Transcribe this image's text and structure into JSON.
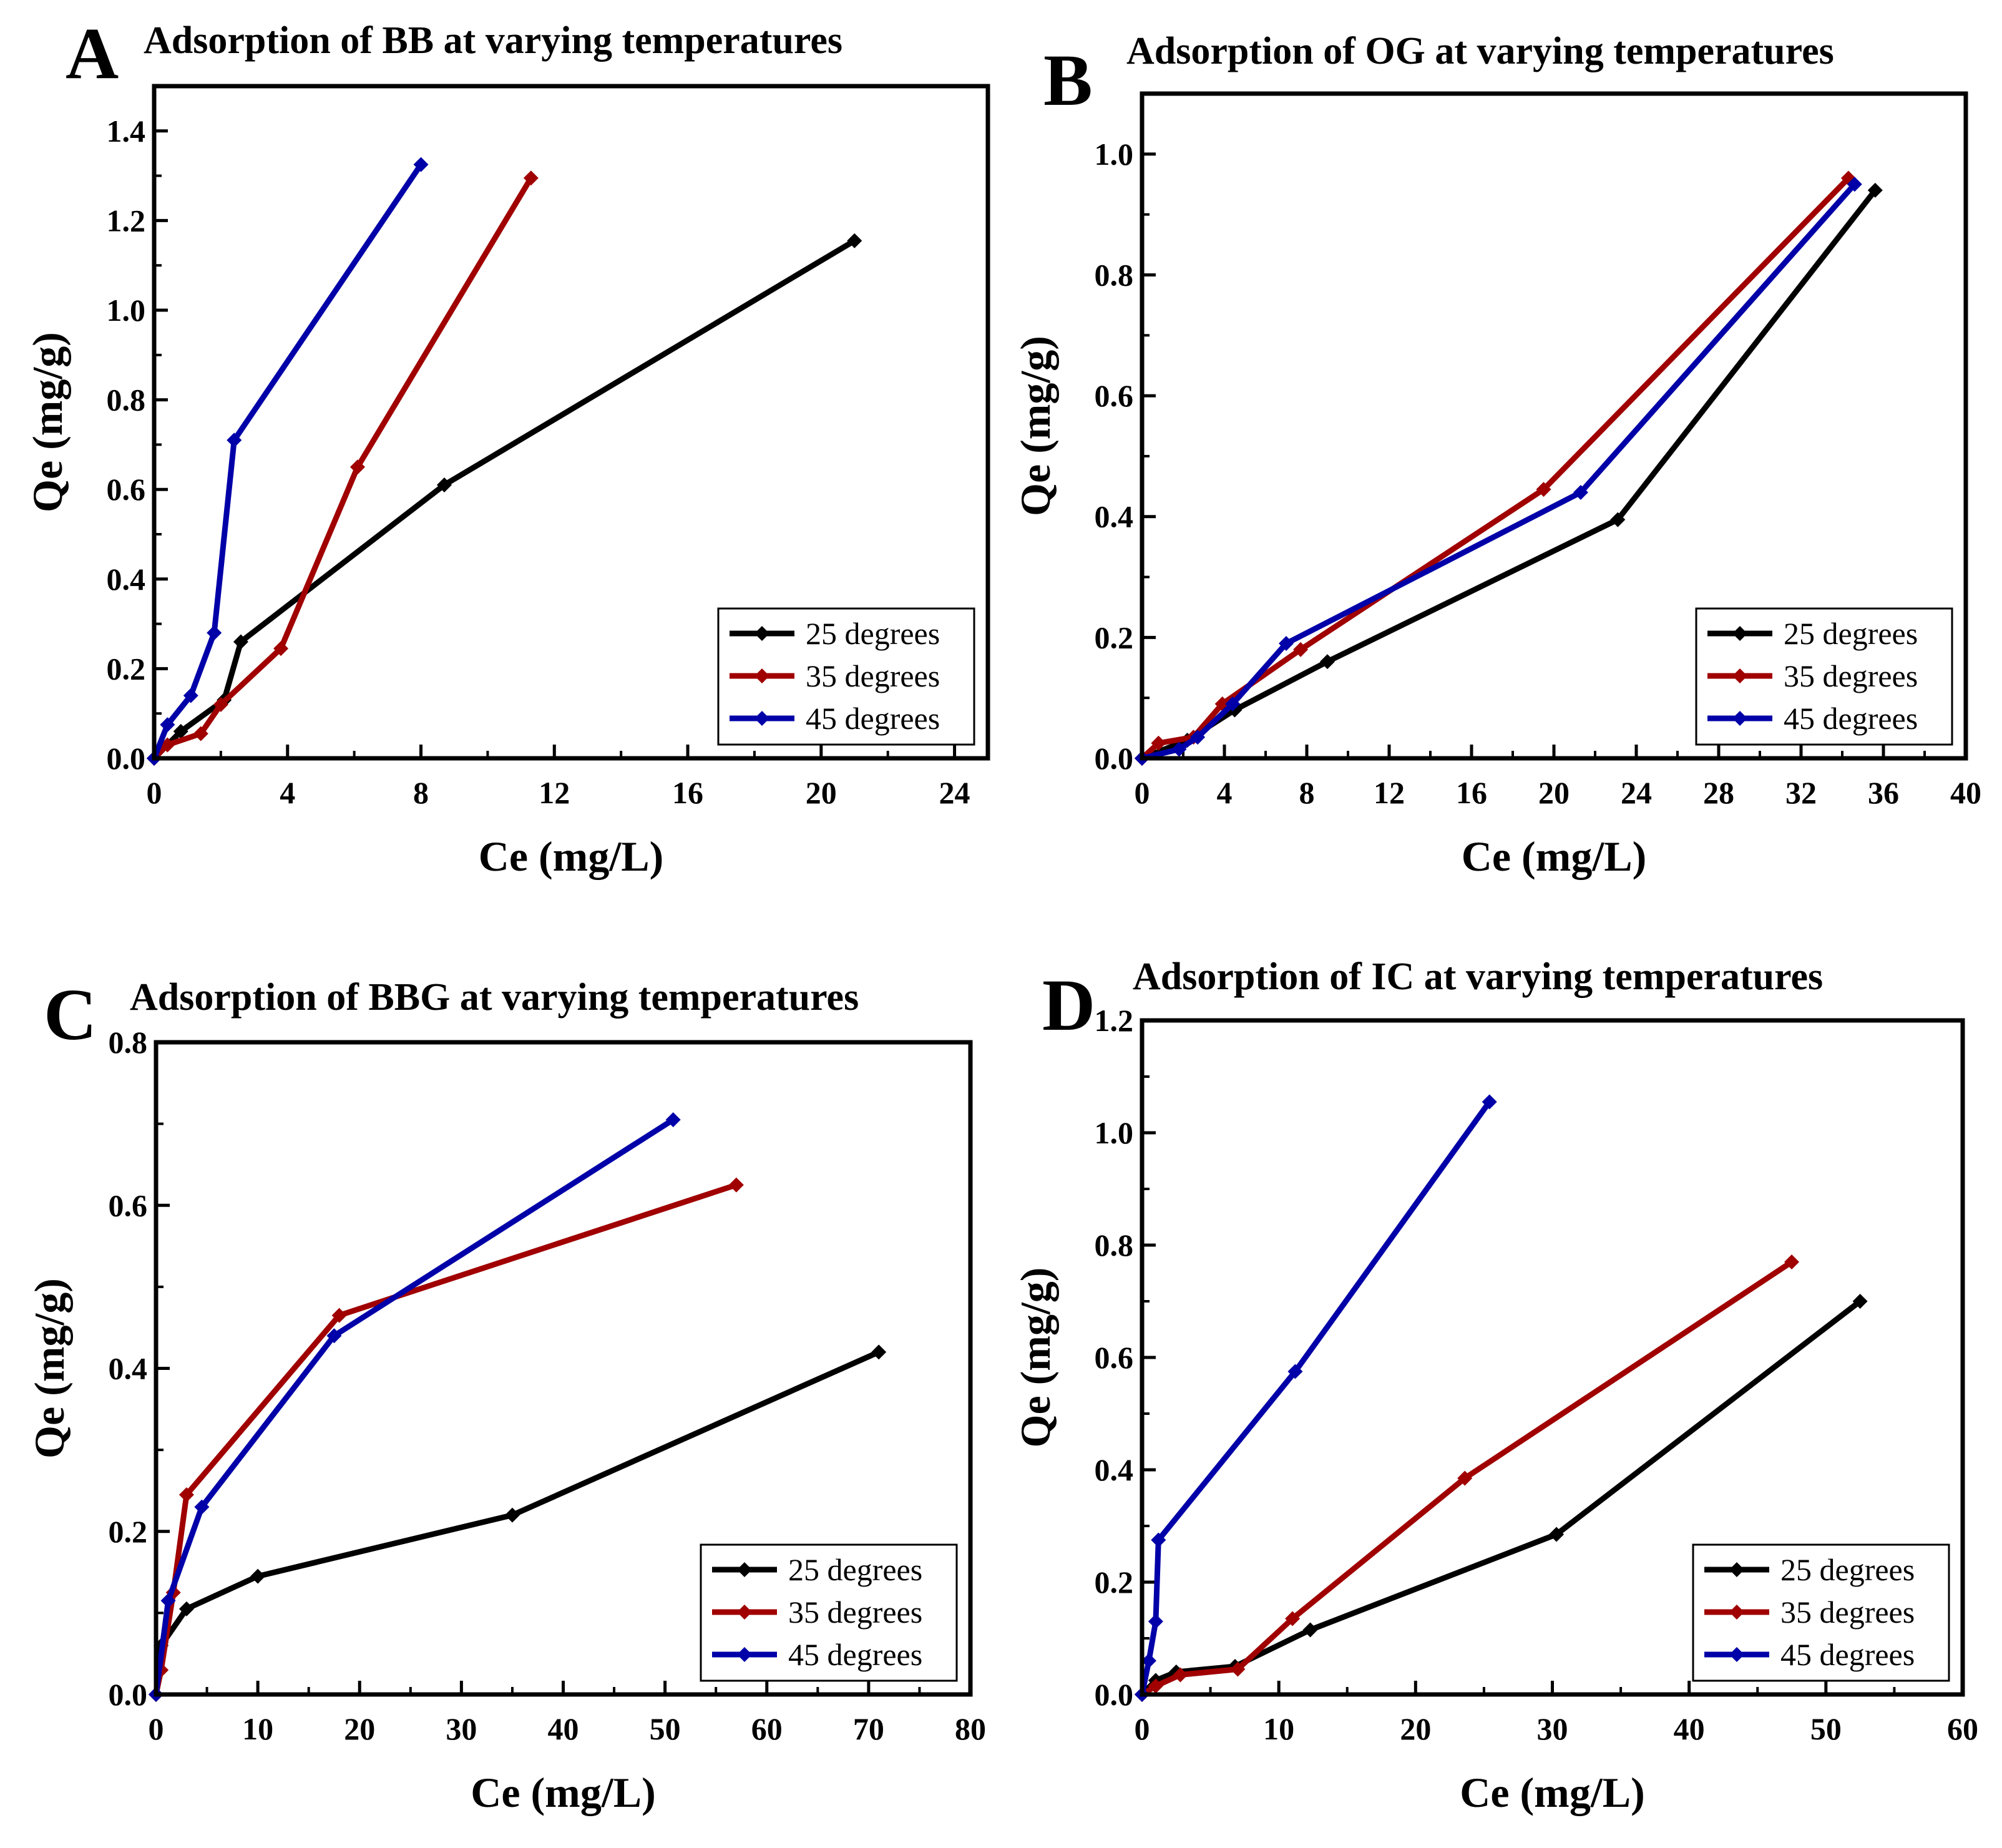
{
  "chart_data": [
    {
      "panel_letter": "A",
      "type": "line",
      "title": "Adsorption of BB at varying temperatures",
      "xlabel": "Ce (mg/L)",
      "ylabel": "Qe (mg/g)",
      "xlim": [
        0,
        25
      ],
      "ylim": [
        0,
        1.5
      ],
      "xticks": [
        0,
        4,
        8,
        12,
        16,
        20,
        24
      ],
      "yticks": [
        0.0,
        0.2,
        0.4,
        0.6,
        0.8,
        1.0,
        1.2,
        1.4
      ],
      "ytick_decimals": 1,
      "legend_position": "bottom-right",
      "series": [
        {
          "name": "25 degrees",
          "color": "#000000",
          "x": [
            0,
            0.8,
            2.1,
            2.6,
            8.7,
            21.0
          ],
          "y": [
            0,
            0.06,
            0.13,
            0.26,
            0.61,
            1.155
          ]
        },
        {
          "name": "35 degrees",
          "color": "#a00000",
          "x": [
            0,
            0.4,
            1.4,
            2.0,
            3.8,
            6.1,
            11.3
          ],
          "y": [
            0,
            0.03,
            0.055,
            0.12,
            0.245,
            0.65,
            1.295
          ]
        },
        {
          "name": "45 degrees",
          "color": "#0000a8",
          "x": [
            0,
            0.4,
            1.1,
            1.8,
            2.4,
            8.0
          ],
          "y": [
            0,
            0.075,
            0.14,
            0.28,
            0.71,
            1.325
          ]
        }
      ]
    },
    {
      "panel_letter": "B",
      "type": "line",
      "title": "Adsorption of OG at varying temperatures",
      "xlabel": "Ce (mg/L)",
      "ylabel": "Qe (mg/g)",
      "xlim": [
        0,
        40
      ],
      "ylim": [
        0,
        1.1
      ],
      "xticks": [
        0,
        4,
        8,
        12,
        16,
        20,
        24,
        28,
        32,
        36,
        40
      ],
      "yticks": [
        0.0,
        0.2,
        0.4,
        0.6,
        0.8,
        1.0
      ],
      "ytick_decimals": 1,
      "legend_position": "bottom-right",
      "series": [
        {
          "name": "25 degrees",
          "color": "#000000",
          "x": [
            0,
            2.2,
            4.5,
            9.0,
            23.1,
            35.6
          ],
          "y": [
            0,
            0.03,
            0.08,
            0.16,
            0.395,
            0.94
          ]
        },
        {
          "name": "35 degrees",
          "color": "#a00000",
          "x": [
            0,
            0.8,
            2.5,
            3.9,
            7.7,
            19.5,
            34.3
          ],
          "y": [
            0,
            0.025,
            0.035,
            0.09,
            0.18,
            0.445,
            0.96
          ]
        },
        {
          "name": "45 degrees",
          "color": "#0000a8",
          "x": [
            0,
            1.8,
            2.7,
            4.4,
            7.0,
            21.3,
            34.6
          ],
          "y": [
            0,
            0.015,
            0.035,
            0.09,
            0.19,
            0.44,
            0.95
          ]
        }
      ]
    },
    {
      "panel_letter": "C",
      "type": "line",
      "title": "Adsorption of BBG at varying temperatures",
      "xlabel": "Ce (mg/L)",
      "ylabel": "Qe (mg/g)",
      "xlim": [
        0,
        80
      ],
      "ylim": [
        0,
        0.8
      ],
      "xticks": [
        0,
        10,
        20,
        30,
        40,
        50,
        60,
        70,
        80
      ],
      "yticks": [
        0.0,
        0.2,
        0.4,
        0.6,
        0.8
      ],
      "ytick_decimals": 1,
      "legend_position": "bottom-right",
      "series": [
        {
          "name": "25 degrees",
          "color": "#000000",
          "x": [
            0,
            0.5,
            3.0,
            10.0,
            35.0,
            71.0
          ],
          "y": [
            0,
            0.06,
            0.105,
            0.145,
            0.22,
            0.42
          ]
        },
        {
          "name": "35 degrees",
          "color": "#a00000",
          "x": [
            0,
            0.5,
            1.7,
            3.0,
            18.0,
            57.0
          ],
          "y": [
            0,
            0.03,
            0.125,
            0.245,
            0.465,
            0.625
          ]
        },
        {
          "name": "45 degrees",
          "color": "#0000a8",
          "x": [
            0,
            1.2,
            4.5,
            17.5,
            50.8
          ],
          "y": [
            0,
            0.115,
            0.23,
            0.44,
            0.705
          ]
        }
      ]
    },
    {
      "panel_letter": "D",
      "type": "line",
      "title": "Adsorption of IC at varying temperatures",
      "xlabel": "Ce (mg/L)",
      "ylabel": "Qe (mg/g)",
      "xlim": [
        0,
        60
      ],
      "ylim": [
        0,
        1.2
      ],
      "xticks": [
        0,
        10,
        20,
        30,
        40,
        50,
        60
      ],
      "yticks": [
        0.0,
        0.2,
        0.4,
        0.6,
        0.8,
        1.0,
        1.2
      ],
      "ytick_decimals": 1,
      "legend_position": "bottom-right",
      "series": [
        {
          "name": "25 degrees",
          "color": "#000000",
          "x": [
            0,
            1.0,
            2.5,
            6.8,
            12.3,
            30.3,
            52.5
          ],
          "y": [
            0,
            0.025,
            0.04,
            0.05,
            0.115,
            0.285,
            0.7
          ]
        },
        {
          "name": "35 degrees",
          "color": "#a00000",
          "x": [
            0,
            1.0,
            2.8,
            7.0,
            11.0,
            23.6,
            47.5
          ],
          "y": [
            0,
            0.015,
            0.035,
            0.045,
            0.135,
            0.385,
            0.77
          ]
        },
        {
          "name": "45 degrees",
          "color": "#0000a8",
          "x": [
            0,
            0.5,
            1.0,
            1.2,
            11.2,
            25.4
          ],
          "y": [
            0,
            0.06,
            0.13,
            0.275,
            0.575,
            1.055
          ]
        }
      ]
    }
  ]
}
